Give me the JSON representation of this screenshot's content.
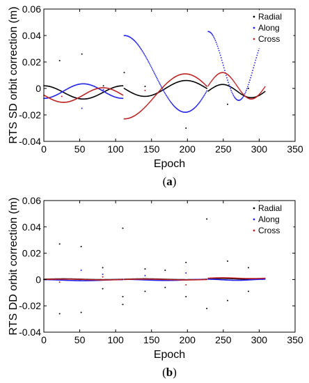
{
  "chart_data": [
    {
      "type": "scatter",
      "panel": "(a)",
      "panel_open": "(",
      "panel_letter": "a",
      "panel_close": ")",
      "xlabel": "Epoch",
      "ylabel": "RTS SD orbit correction (m)",
      "xlim": [
        0,
        350
      ],
      "ylim": [
        -0.04,
        0.06
      ],
      "xticks": [
        "0",
        "50",
        "100",
        "150",
        "200",
        "250",
        "300",
        "350"
      ],
      "yticks": [
        "-0.04",
        "-0.02",
        "0",
        "0.02",
        "0.04",
        "0.06"
      ],
      "legend_position": "top-right",
      "grid": false,
      "series": [
        {
          "name": "Radial",
          "color": "#000000",
          "segments": [
            {
              "start": 0,
              "end": 110,
              "value": -0.003,
              "amplitude": 0.005,
              "period": 110,
              "phase": 1.5708
            },
            {
              "start": 112,
              "end": 227,
              "value": 0,
              "amplitude": -0.006,
              "period": 115,
              "phase": 0
            },
            {
              "start": 229,
              "end": 308,
              "value": -0.002,
              "amplitude": 0.005,
              "period": 80,
              "phase": 0
            }
          ],
          "outliers": [
            [
              22,
              0.021
            ],
            [
              53,
              0.026
            ],
            [
              83,
              0.002
            ],
            [
              112,
              0.012
            ],
            [
              141,
              0.0015
            ],
            [
              198,
              -0.03
            ],
            [
              256,
              -0.012
            ],
            [
              285,
              0.0
            ]
          ]
        },
        {
          "name": "Along",
          "color": "#2222ee",
          "segments": [
            {
              "start": 0,
              "end": 110,
              "value": -0.002,
              "amplitude": -0.0055,
              "period": 110,
              "phase": 1.5708
            },
            {
              "start": 112,
              "end": 227,
              "value": 0.011,
              "amplitude": 0.029,
              "period": 170,
              "phase": 1.5708
            },
            {
              "start": 229,
              "end": 308,
              "value": 0.017,
              "amplitude": 0.026,
              "period": 85,
              "phase": 1.5708
            }
          ],
          "outliers": [
            [
              53,
              -0.015
            ],
            [
              83,
              -0.001
            ]
          ]
        },
        {
          "name": "Cross",
          "color": "#bb2222",
          "segments": [
            {
              "start": 0,
              "end": 110,
              "value": -0.005,
              "amplitude": -0.0055,
              "period": 110,
              "phase": 0
            },
            {
              "start": 112,
              "end": 227,
              "value": -0.006,
              "amplitude": -0.017,
              "period": 170,
              "phase": 1.5708
            },
            {
              "start": 229,
              "end": 308,
              "value": 0.002,
              "amplitude": 0.01,
              "period": 80,
              "phase": 0
            }
          ],
          "outliers": [
            [
              25,
              -0.006
            ],
            [
              141,
              -0.0015
            ]
          ]
        }
      ]
    },
    {
      "type": "scatter",
      "panel": "(b)",
      "panel_open": "(",
      "panel_letter": "b",
      "panel_close": ")",
      "xlabel": "Epoch",
      "ylabel": "RTS DD orbit correction (m)",
      "xlim": [
        0,
        350
      ],
      "ylim": [
        -0.04,
        0.06
      ],
      "xticks": [
        "0",
        "50",
        "100",
        "150",
        "200",
        "250",
        "300",
        "350"
      ],
      "yticks": [
        "-0.04",
        "-0.02",
        "0",
        "0.02",
        "0.04",
        "0.06"
      ],
      "legend_position": "top-right",
      "grid": false,
      "series": [
        {
          "name": "Radial",
          "color": "#000000",
          "segments": [
            {
              "start": 0,
              "end": 110,
              "value": 0.0002,
              "amplitude": 0.0003,
              "period": 110,
              "phase": 0
            },
            {
              "start": 112,
              "end": 227,
              "value": 0.0002,
              "amplitude": 0.0003,
              "period": 115,
              "phase": 0
            },
            {
              "start": 229,
              "end": 308,
              "value": 0.0005,
              "amplitude": 0.0003,
              "period": 80,
              "phase": 0
            }
          ],
          "outliers": [
            [
              22,
              0.027
            ],
            [
              22,
              -0.026
            ],
            [
              52,
              0.025
            ],
            [
              52,
              -0.025
            ],
            [
              82,
              0.009
            ],
            [
              82,
              -0.007
            ],
            [
              110,
              0.039
            ],
            [
              110,
              -0.013
            ],
            [
              110,
              -0.019
            ],
            [
              141,
              0.008
            ],
            [
              141,
              -0.009
            ],
            [
              169,
              0.007
            ],
            [
              169,
              -0.006
            ],
            [
              198,
              0.013
            ],
            [
              198,
              -0.013
            ],
            [
              227,
              0.046
            ],
            [
              227,
              -0.022
            ],
            [
              256,
              0.014
            ],
            [
              256,
              -0.016
            ],
            [
              285,
              0.009
            ],
            [
              285,
              -0.009
            ]
          ]
        },
        {
          "name": "Along",
          "color": "#2222ee",
          "segments": [
            {
              "start": 0,
              "end": 110,
              "value": -0.0005,
              "amplitude": 0.0004,
              "period": 110,
              "phase": 1.5708
            },
            {
              "start": 112,
              "end": 227,
              "value": -0.0003,
              "amplitude": 0.0004,
              "period": 115,
              "phase": 1.5708
            },
            {
              "start": 229,
              "end": 308,
              "value": -0.0002,
              "amplitude": 0.0004,
              "period": 80,
              "phase": 1.5708
            }
          ],
          "outliers": [
            [
              52,
              0.007
            ],
            [
              82,
              0.004
            ],
            [
              141,
              0.003
            ],
            [
              198,
              0.005
            ]
          ]
        },
        {
          "name": "Cross",
          "color": "#bb2222",
          "segments": [
            {
              "start": 0,
              "end": 110,
              "value": 0,
              "amplitude": 0.0003,
              "period": 110,
              "phase": 0
            },
            {
              "start": 112,
              "end": 227,
              "value": 0,
              "amplitude": 0.0003,
              "period": 115,
              "phase": 0
            },
            {
              "start": 229,
              "end": 308,
              "value": 0.001,
              "amplitude": 0.0003,
              "period": 80,
              "phase": 0
            }
          ],
          "outliers": [
            [
              22,
              -0.002
            ],
            [
              82,
              0.002
            ],
            [
              198,
              -0.004
            ]
          ]
        }
      ]
    }
  ]
}
